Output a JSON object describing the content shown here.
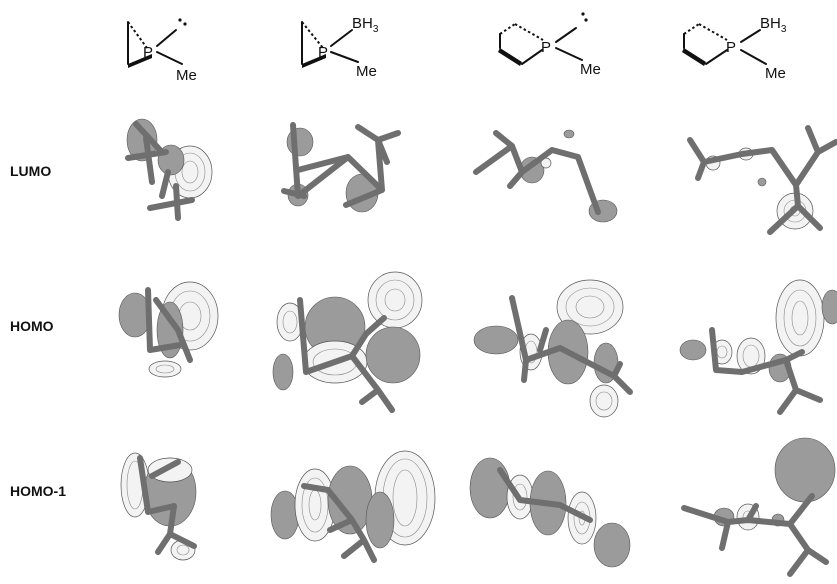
{
  "row_labels": {
    "lumo": "LUMO",
    "homo": "HOMO",
    "homo1": "HOMO-1"
  },
  "structures": [
    {
      "p": "P",
      "me": "Me",
      "bh3": ""
    },
    {
      "p": "P",
      "me": "Me",
      "bh3": "BH",
      "bh3_sub": "3"
    },
    {
      "p": "P",
      "me": "Me",
      "bh3": ""
    },
    {
      "p": "P",
      "me": "Me",
      "bh3": "BH",
      "bh3_sub": "3"
    }
  ],
  "colors": {
    "shaded_lobe": "#9b9b9b",
    "light_lobe": "#f3f3f3",
    "stick": "#6f6f6f",
    "ink": "#111111"
  }
}
